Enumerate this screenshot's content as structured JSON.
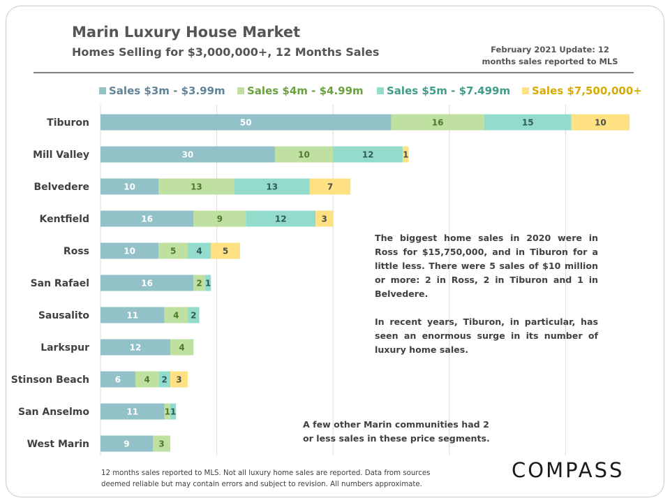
{
  "header": {
    "title": "Marin Luxury House Market",
    "subtitle": "Homes Selling for $3,000,000+, 12 Months Sales",
    "update_line1": "February 2021  Update: 12",
    "update_line2": "months sales reported to MLS"
  },
  "notes": {
    "para1": "The biggest home sales in 2020 were in Ross for $15,750,000, and in Tiburon for a little less. There were 5 sales of $10 million or more: 2 in Ross, 2 in Tiburon and 1 in Belvedere.",
    "para2": "In recent years, Tiburon, in particular, has seen an enormous surge in its number of luxury home sales.",
    "other": "A few other Marin communities had 2 or less sales in these price segments."
  },
  "footnote": {
    "line1": "12 months sales reported to MLS. Not all luxury home sales are reported. Data from sources",
    "line2": "deemed reliable but may contain errors and subject to revision. All numbers approximate."
  },
  "logo": "COMPASS",
  "chart_data": {
    "type": "bar",
    "orientation": "horizontal",
    "stacked": true,
    "title": "Marin Luxury House Market",
    "subtitle": "Homes Selling for $3,000,000+, 12 Months Sales",
    "xlabel": "",
    "ylabel": "",
    "xlim": [
      0,
      91
    ],
    "grid": true,
    "legend_position": "top",
    "categories": [
      "Tiburon",
      "Mill Valley",
      "Belvedere",
      "Kentfield",
      "Ross",
      "San Rafael",
      "Sausalito",
      "Larkspur",
      "Stinson Beach",
      "San Anselmo",
      "West Marin"
    ],
    "series": [
      {
        "name": "Sales $3m - $3.99m",
        "color": "#92c1c8",
        "label_color": "#ffffff",
        "legend_color": "#5f8497",
        "values": [
          50,
          30,
          10,
          16,
          10,
          16,
          11,
          12,
          6,
          11,
          9
        ]
      },
      {
        "name": "Sales $4m - $4.99m",
        "color": "#bfe0a0",
        "label_color": "#4a7a2a",
        "legend_color": "#6aa13f",
        "values": [
          16,
          10,
          13,
          9,
          5,
          2,
          4,
          4,
          4,
          1,
          3
        ]
      },
      {
        "name": "Sales $5m - $7.499m",
        "color": "#93dccb",
        "label_color": "#2f5a55",
        "legend_color": "#3f9c86",
        "values": [
          15,
          12,
          13,
          12,
          4,
          1,
          2,
          0,
          2,
          1,
          0
        ]
      },
      {
        "name": "Sales $7,500,000+",
        "color": "#fde182",
        "label_color": "#4d4d4d",
        "legend_color": "#d9ab00",
        "values": [
          10,
          1,
          7,
          3,
          5,
          0,
          0,
          0,
          3,
          0,
          0
        ]
      }
    ]
  }
}
